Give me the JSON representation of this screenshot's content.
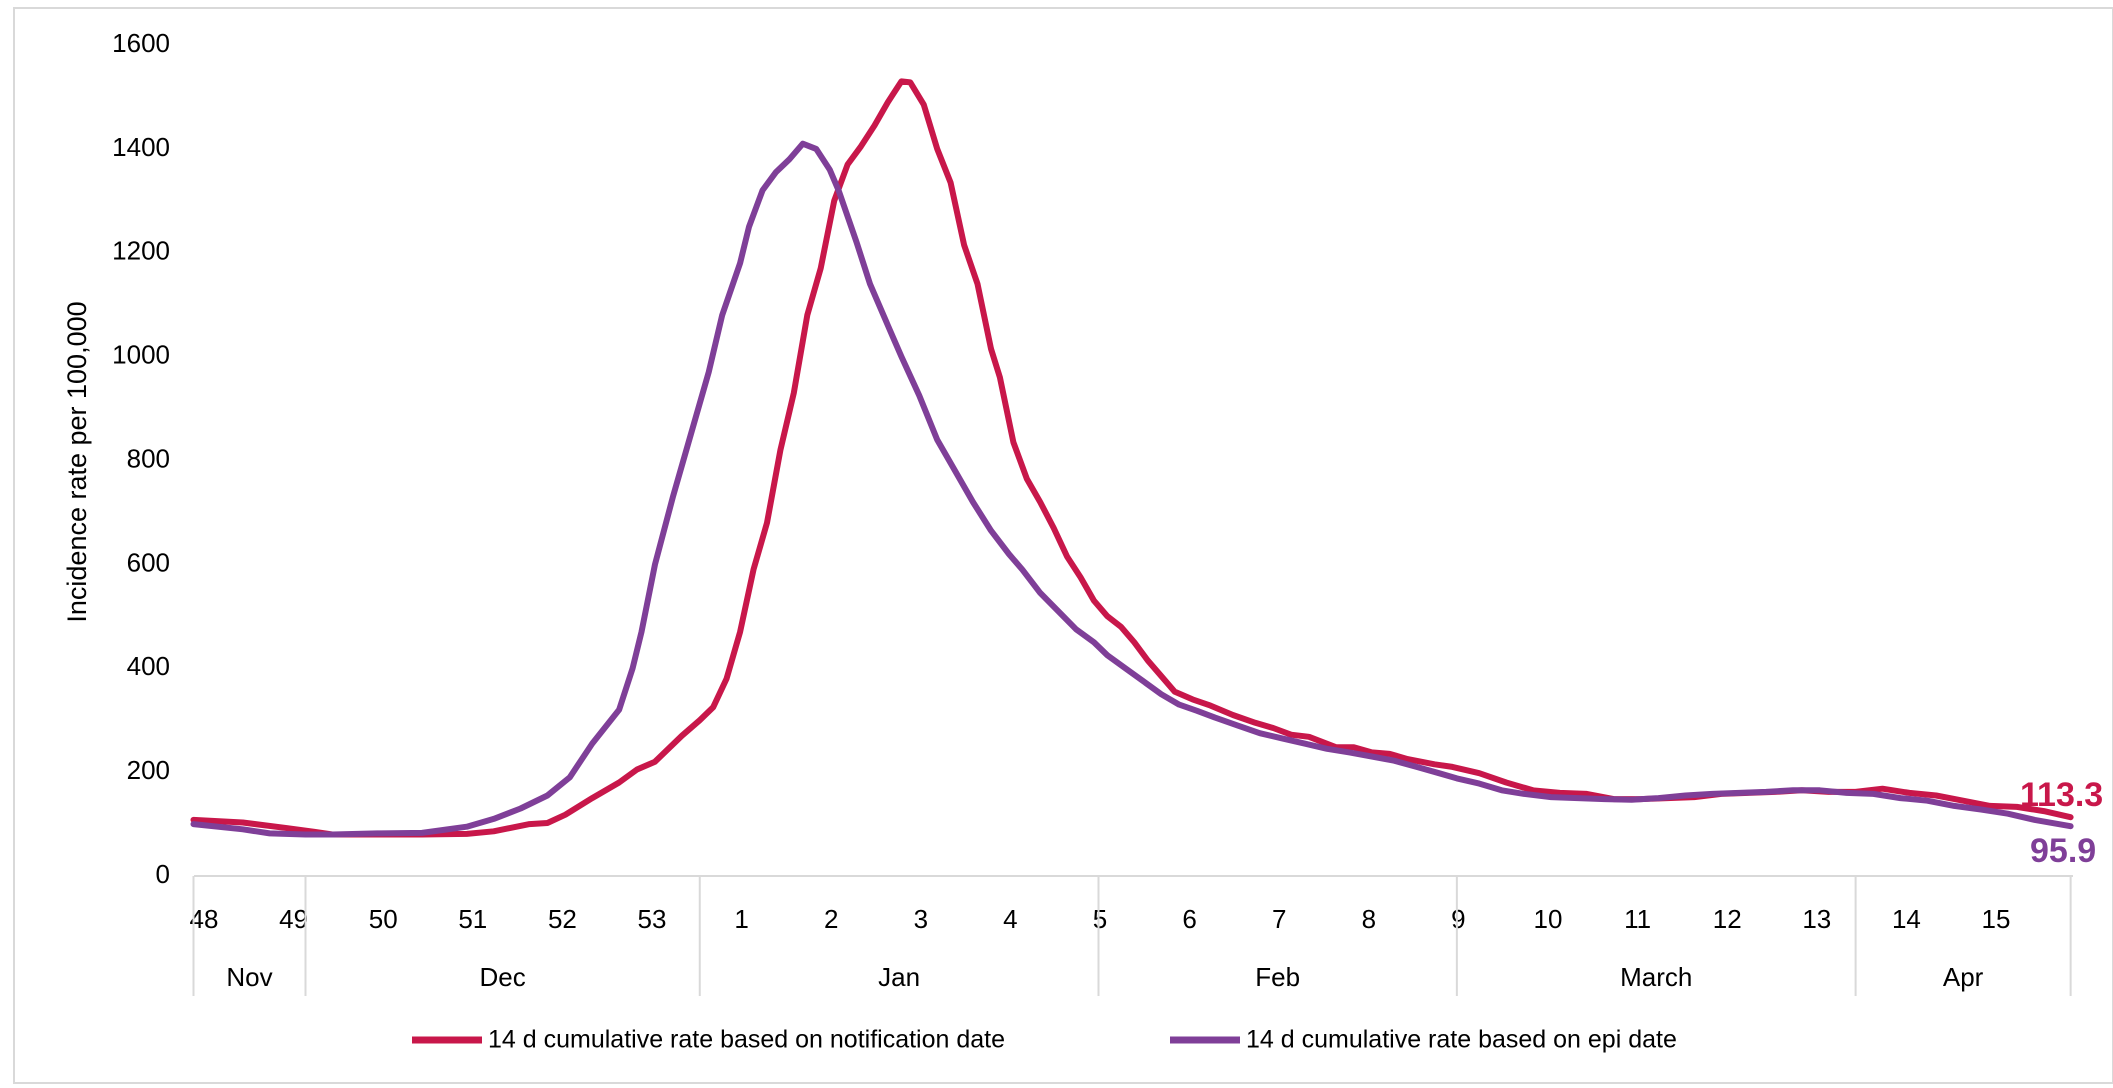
{
  "chart_data": {
    "type": "line",
    "ylabel": "Incidence rate per 100,000",
    "ylim": [
      0,
      1600
    ],
    "yticks": [
      0,
      200,
      400,
      600,
      800,
      1000,
      1200,
      1400,
      1600
    ],
    "grid": false,
    "legend_position": "bottom",
    "x_unit": "ISO week",
    "xlim": [
      48,
      68.1
    ],
    "week_ticks": [
      {
        "label": "48",
        "x": 48
      },
      {
        "label": "49",
        "x": 49
      },
      {
        "label": "50",
        "x": 50
      },
      {
        "label": "51",
        "x": 51
      },
      {
        "label": "52",
        "x": 52
      },
      {
        "label": "53",
        "x": 53
      },
      {
        "label": "1",
        "x": 54
      },
      {
        "label": "2",
        "x": 55
      },
      {
        "label": "3",
        "x": 56
      },
      {
        "label": "4",
        "x": 57
      },
      {
        "label": "5",
        "x": 58
      },
      {
        "label": "6",
        "x": 59
      },
      {
        "label": "7",
        "x": 60
      },
      {
        "label": "8",
        "x": 61
      },
      {
        "label": "9",
        "x": 62
      },
      {
        "label": "10",
        "x": 63
      },
      {
        "label": "11",
        "x": 64
      },
      {
        "label": "12",
        "x": 65
      },
      {
        "label": "13",
        "x": 66
      },
      {
        "label": "14",
        "x": 67
      },
      {
        "label": "15",
        "x": 68
      }
    ],
    "month_groups": [
      {
        "label": "Nov",
        "start": 47.95,
        "end": 49.2
      },
      {
        "label": "Dec",
        "start": 49.2,
        "end": 53.6
      },
      {
        "label": "Jan",
        "start": 53.6,
        "end": 58.05
      },
      {
        "label": "Feb",
        "start": 58.05,
        "end": 62.05
      },
      {
        "label": "March",
        "start": 62.05,
        "end": 66.5
      },
      {
        "label": "Apr",
        "start": 66.5,
        "end": 68.9
      }
    ],
    "series": [
      {
        "name": "14 d cumulative rate  based on notification date",
        "color": "#C8174A",
        "end_label": "113.3",
        "points": [
          [
            47.95,
            108
          ],
          [
            48.5,
            103
          ],
          [
            49,
            92
          ],
          [
            49.3,
            85
          ],
          [
            49.5,
            80
          ],
          [
            50,
            80
          ],
          [
            50.5,
            80
          ],
          [
            51,
            81
          ],
          [
            51.3,
            86
          ],
          [
            51.7,
            100
          ],
          [
            51.9,
            102
          ],
          [
            52.1,
            118
          ],
          [
            52.4,
            150
          ],
          [
            52.7,
            180
          ],
          [
            52.9,
            205
          ],
          [
            53.1,
            220
          ],
          [
            53.4,
            270
          ],
          [
            53.6,
            300
          ],
          [
            53.75,
            325
          ],
          [
            53.9,
            380
          ],
          [
            54.05,
            470
          ],
          [
            54.2,
            590
          ],
          [
            54.35,
            680
          ],
          [
            54.5,
            820
          ],
          [
            54.65,
            930
          ],
          [
            54.8,
            1080
          ],
          [
            54.95,
            1170
          ],
          [
            55.1,
            1300
          ],
          [
            55.25,
            1370
          ],
          [
            55.4,
            1405
          ],
          [
            55.55,
            1445
          ],
          [
            55.7,
            1490
          ],
          [
            55.85,
            1530
          ],
          [
            55.95,
            1528
          ],
          [
            56.1,
            1485
          ],
          [
            56.25,
            1400
          ],
          [
            56.4,
            1335
          ],
          [
            56.55,
            1215
          ],
          [
            56.7,
            1140
          ],
          [
            56.85,
            1015
          ],
          [
            56.95,
            960
          ],
          [
            57.1,
            835
          ],
          [
            57.25,
            765
          ],
          [
            57.4,
            720
          ],
          [
            57.55,
            670
          ],
          [
            57.7,
            615
          ],
          [
            57.85,
            575
          ],
          [
            58,
            530
          ],
          [
            58.15,
            500
          ],
          [
            58.3,
            480
          ],
          [
            58.45,
            450
          ],
          [
            58.6,
            415
          ],
          [
            58.75,
            385
          ],
          [
            58.9,
            355
          ],
          [
            59.1,
            340
          ],
          [
            59.3,
            328
          ],
          [
            59.55,
            310
          ],
          [
            59.8,
            295
          ],
          [
            60,
            285
          ],
          [
            60.2,
            272
          ],
          [
            60.4,
            268
          ],
          [
            60.7,
            248
          ],
          [
            60.9,
            248
          ],
          [
            61.1,
            238
          ],
          [
            61.3,
            235
          ],
          [
            61.5,
            225
          ],
          [
            61.8,
            215
          ],
          [
            62,
            210
          ],
          [
            62.3,
            198
          ],
          [
            62.6,
            180
          ],
          [
            62.9,
            165
          ],
          [
            63.2,
            160
          ],
          [
            63.5,
            158
          ],
          [
            63.8,
            148
          ],
          [
            64.1,
            148
          ],
          [
            64.4,
            150
          ],
          [
            64.7,
            152
          ],
          [
            65,
            158
          ],
          [
            65.3,
            160
          ],
          [
            65.6,
            162
          ],
          [
            65.9,
            165
          ],
          [
            66.2,
            162
          ],
          [
            66.5,
            162
          ],
          [
            66.8,
            168
          ],
          [
            67.1,
            160
          ],
          [
            67.4,
            155
          ],
          [
            67.7,
            145
          ],
          [
            68,
            135
          ],
          [
            68.3,
            133
          ],
          [
            68.6,
            125
          ],
          [
            68.9,
            113.3
          ]
        ]
      },
      {
        "name": "14 d cumulative rate based on epi date",
        "color": "#7F3F98",
        "end_label": "95.9",
        "points": [
          [
            47.95,
            100
          ],
          [
            48.5,
            90
          ],
          [
            48.8,
            82
          ],
          [
            49.2,
            80
          ],
          [
            49.5,
            80
          ],
          [
            50,
            82
          ],
          [
            50.5,
            83
          ],
          [
            51,
            95
          ],
          [
            51.3,
            110
          ],
          [
            51.6,
            130
          ],
          [
            51.9,
            155
          ],
          [
            52.15,
            190
          ],
          [
            52.4,
            255
          ],
          [
            52.7,
            320
          ],
          [
            52.85,
            400
          ],
          [
            52.95,
            470
          ],
          [
            53.1,
            600
          ],
          [
            53.3,
            730
          ],
          [
            53.5,
            850
          ],
          [
            53.7,
            970
          ],
          [
            53.85,
            1080
          ],
          [
            54.05,
            1180
          ],
          [
            54.15,
            1250
          ],
          [
            54.3,
            1320
          ],
          [
            54.45,
            1355
          ],
          [
            54.6,
            1380
          ],
          [
            54.75,
            1410
          ],
          [
            54.9,
            1400
          ],
          [
            55.05,
            1360
          ],
          [
            55.15,
            1320
          ],
          [
            55.35,
            1220
          ],
          [
            55.5,
            1140
          ],
          [
            55.7,
            1060
          ],
          [
            55.85,
            1000
          ],
          [
            56.05,
            925
          ],
          [
            56.25,
            840
          ],
          [
            56.45,
            780
          ],
          [
            56.65,
            720
          ],
          [
            56.85,
            665
          ],
          [
            57.05,
            620
          ],
          [
            57.2,
            590
          ],
          [
            57.4,
            545
          ],
          [
            57.6,
            510
          ],
          [
            57.8,
            475
          ],
          [
            58,
            450
          ],
          [
            58.15,
            425
          ],
          [
            58.35,
            400
          ],
          [
            58.55,
            375
          ],
          [
            58.75,
            350
          ],
          [
            58.95,
            330
          ],
          [
            59.15,
            318
          ],
          [
            59.35,
            305
          ],
          [
            59.6,
            290
          ],
          [
            59.85,
            275
          ],
          [
            60.1,
            265
          ],
          [
            60.35,
            255
          ],
          [
            60.6,
            245
          ],
          [
            60.85,
            238
          ],
          [
            61.1,
            230
          ],
          [
            61.35,
            222
          ],
          [
            61.6,
            210
          ],
          [
            61.85,
            198
          ],
          [
            62.05,
            188
          ],
          [
            62.3,
            178
          ],
          [
            62.55,
            165
          ],
          [
            62.8,
            158
          ],
          [
            63.1,
            152
          ],
          [
            63.4,
            150
          ],
          [
            63.7,
            148
          ],
          [
            64,
            147
          ],
          [
            64.3,
            150
          ],
          [
            64.6,
            155
          ],
          [
            64.9,
            158
          ],
          [
            65.2,
            160
          ],
          [
            65.5,
            162
          ],
          [
            65.8,
            165
          ],
          [
            66.1,
            165
          ],
          [
            66.4,
            160
          ],
          [
            66.7,
            158
          ],
          [
            67,
            150
          ],
          [
            67.3,
            145
          ],
          [
            67.6,
            135
          ],
          [
            67.9,
            128
          ],
          [
            68.2,
            120
          ],
          [
            68.5,
            108
          ],
          [
            68.9,
            95.9
          ]
        ]
      }
    ]
  }
}
